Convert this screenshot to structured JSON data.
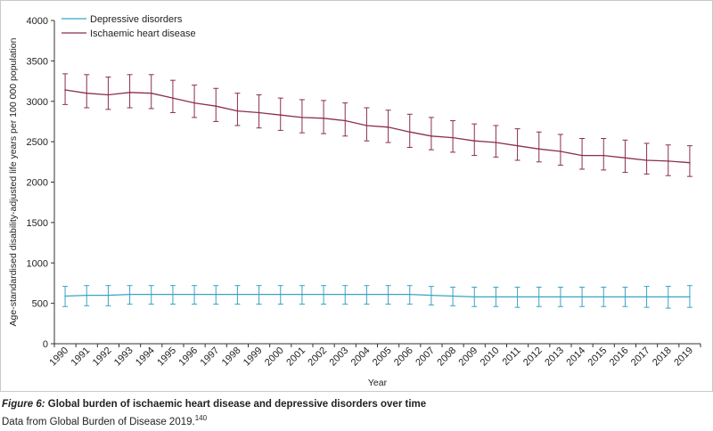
{
  "chart_data": {
    "type": "line",
    "xlabel": "Year",
    "ylabel": "Age-standardised disability-adjusted life years per 100 000 population",
    "ylim": [
      0,
      4000
    ],
    "yticks": [
      0,
      500,
      1000,
      1500,
      2000,
      2500,
      3000,
      3500,
      4000
    ],
    "x": [
      1990,
      1991,
      1992,
      1993,
      1994,
      1995,
      1996,
      1997,
      1998,
      1999,
      2000,
      2001,
      2002,
      2003,
      2004,
      2005,
      2006,
      2007,
      2008,
      2009,
      2010,
      2011,
      2012,
      2013,
      2014,
      2015,
      2016,
      2017,
      2018,
      2019
    ],
    "legend_position": "top-left",
    "grid": false,
    "error_bars": true,
    "series": [
      {
        "name": "Depressive disorders",
        "color": "#3aa3c4",
        "values": [
          590,
          600,
          600,
          610,
          610,
          610,
          610,
          610,
          610,
          610,
          610,
          610,
          610,
          610,
          610,
          610,
          610,
          600,
          590,
          580,
          580,
          580,
          580,
          580,
          580,
          580,
          580,
          580,
          580,
          580
        ],
        "lower": [
          460,
          470,
          470,
          490,
          490,
          490,
          490,
          490,
          490,
          490,
          490,
          490,
          490,
          490,
          490,
          490,
          490,
          480,
          470,
          460,
          460,
          450,
          460,
          460,
          460,
          460,
          460,
          450,
          440,
          450
        ],
        "upper": [
          710,
          720,
          720,
          720,
          720,
          720,
          720,
          720,
          720,
          720,
          720,
          720,
          720,
          720,
          720,
          720,
          720,
          710,
          700,
          700,
          700,
          700,
          700,
          700,
          700,
          700,
          700,
          710,
          710,
          720
        ]
      },
      {
        "name": "Ischaemic heart disease",
        "color": "#8c2f4a",
        "values": [
          3140,
          3100,
          3080,
          3110,
          3100,
          3040,
          2980,
          2940,
          2880,
          2860,
          2830,
          2800,
          2790,
          2760,
          2700,
          2680,
          2620,
          2570,
          2550,
          2510,
          2490,
          2450,
          2410,
          2380,
          2330,
          2330,
          2300,
          2270,
          2260,
          2240
        ],
        "lower": [
          2960,
          2920,
          2900,
          2920,
          2910,
          2860,
          2800,
          2750,
          2700,
          2670,
          2640,
          2610,
          2600,
          2570,
          2510,
          2490,
          2430,
          2400,
          2370,
          2330,
          2310,
          2270,
          2250,
          2210,
          2160,
          2150,
          2120,
          2100,
          2080,
          2070
        ],
        "upper": [
          3340,
          3330,
          3300,
          3330,
          3330,
          3260,
          3200,
          3160,
          3100,
          3080,
          3040,
          3020,
          3010,
          2980,
          2920,
          2890,
          2840,
          2800,
          2760,
          2720,
          2700,
          2660,
          2620,
          2590,
          2540,
          2540,
          2520,
          2480,
          2460,
          2450
        ]
      }
    ]
  },
  "caption": {
    "figure_label": "Figure 6:",
    "title": " Global burden of ischaemic heart disease and depressive disorders over time",
    "source": "Data from Global Burden of Disease 2019.",
    "source_ref": "140"
  }
}
